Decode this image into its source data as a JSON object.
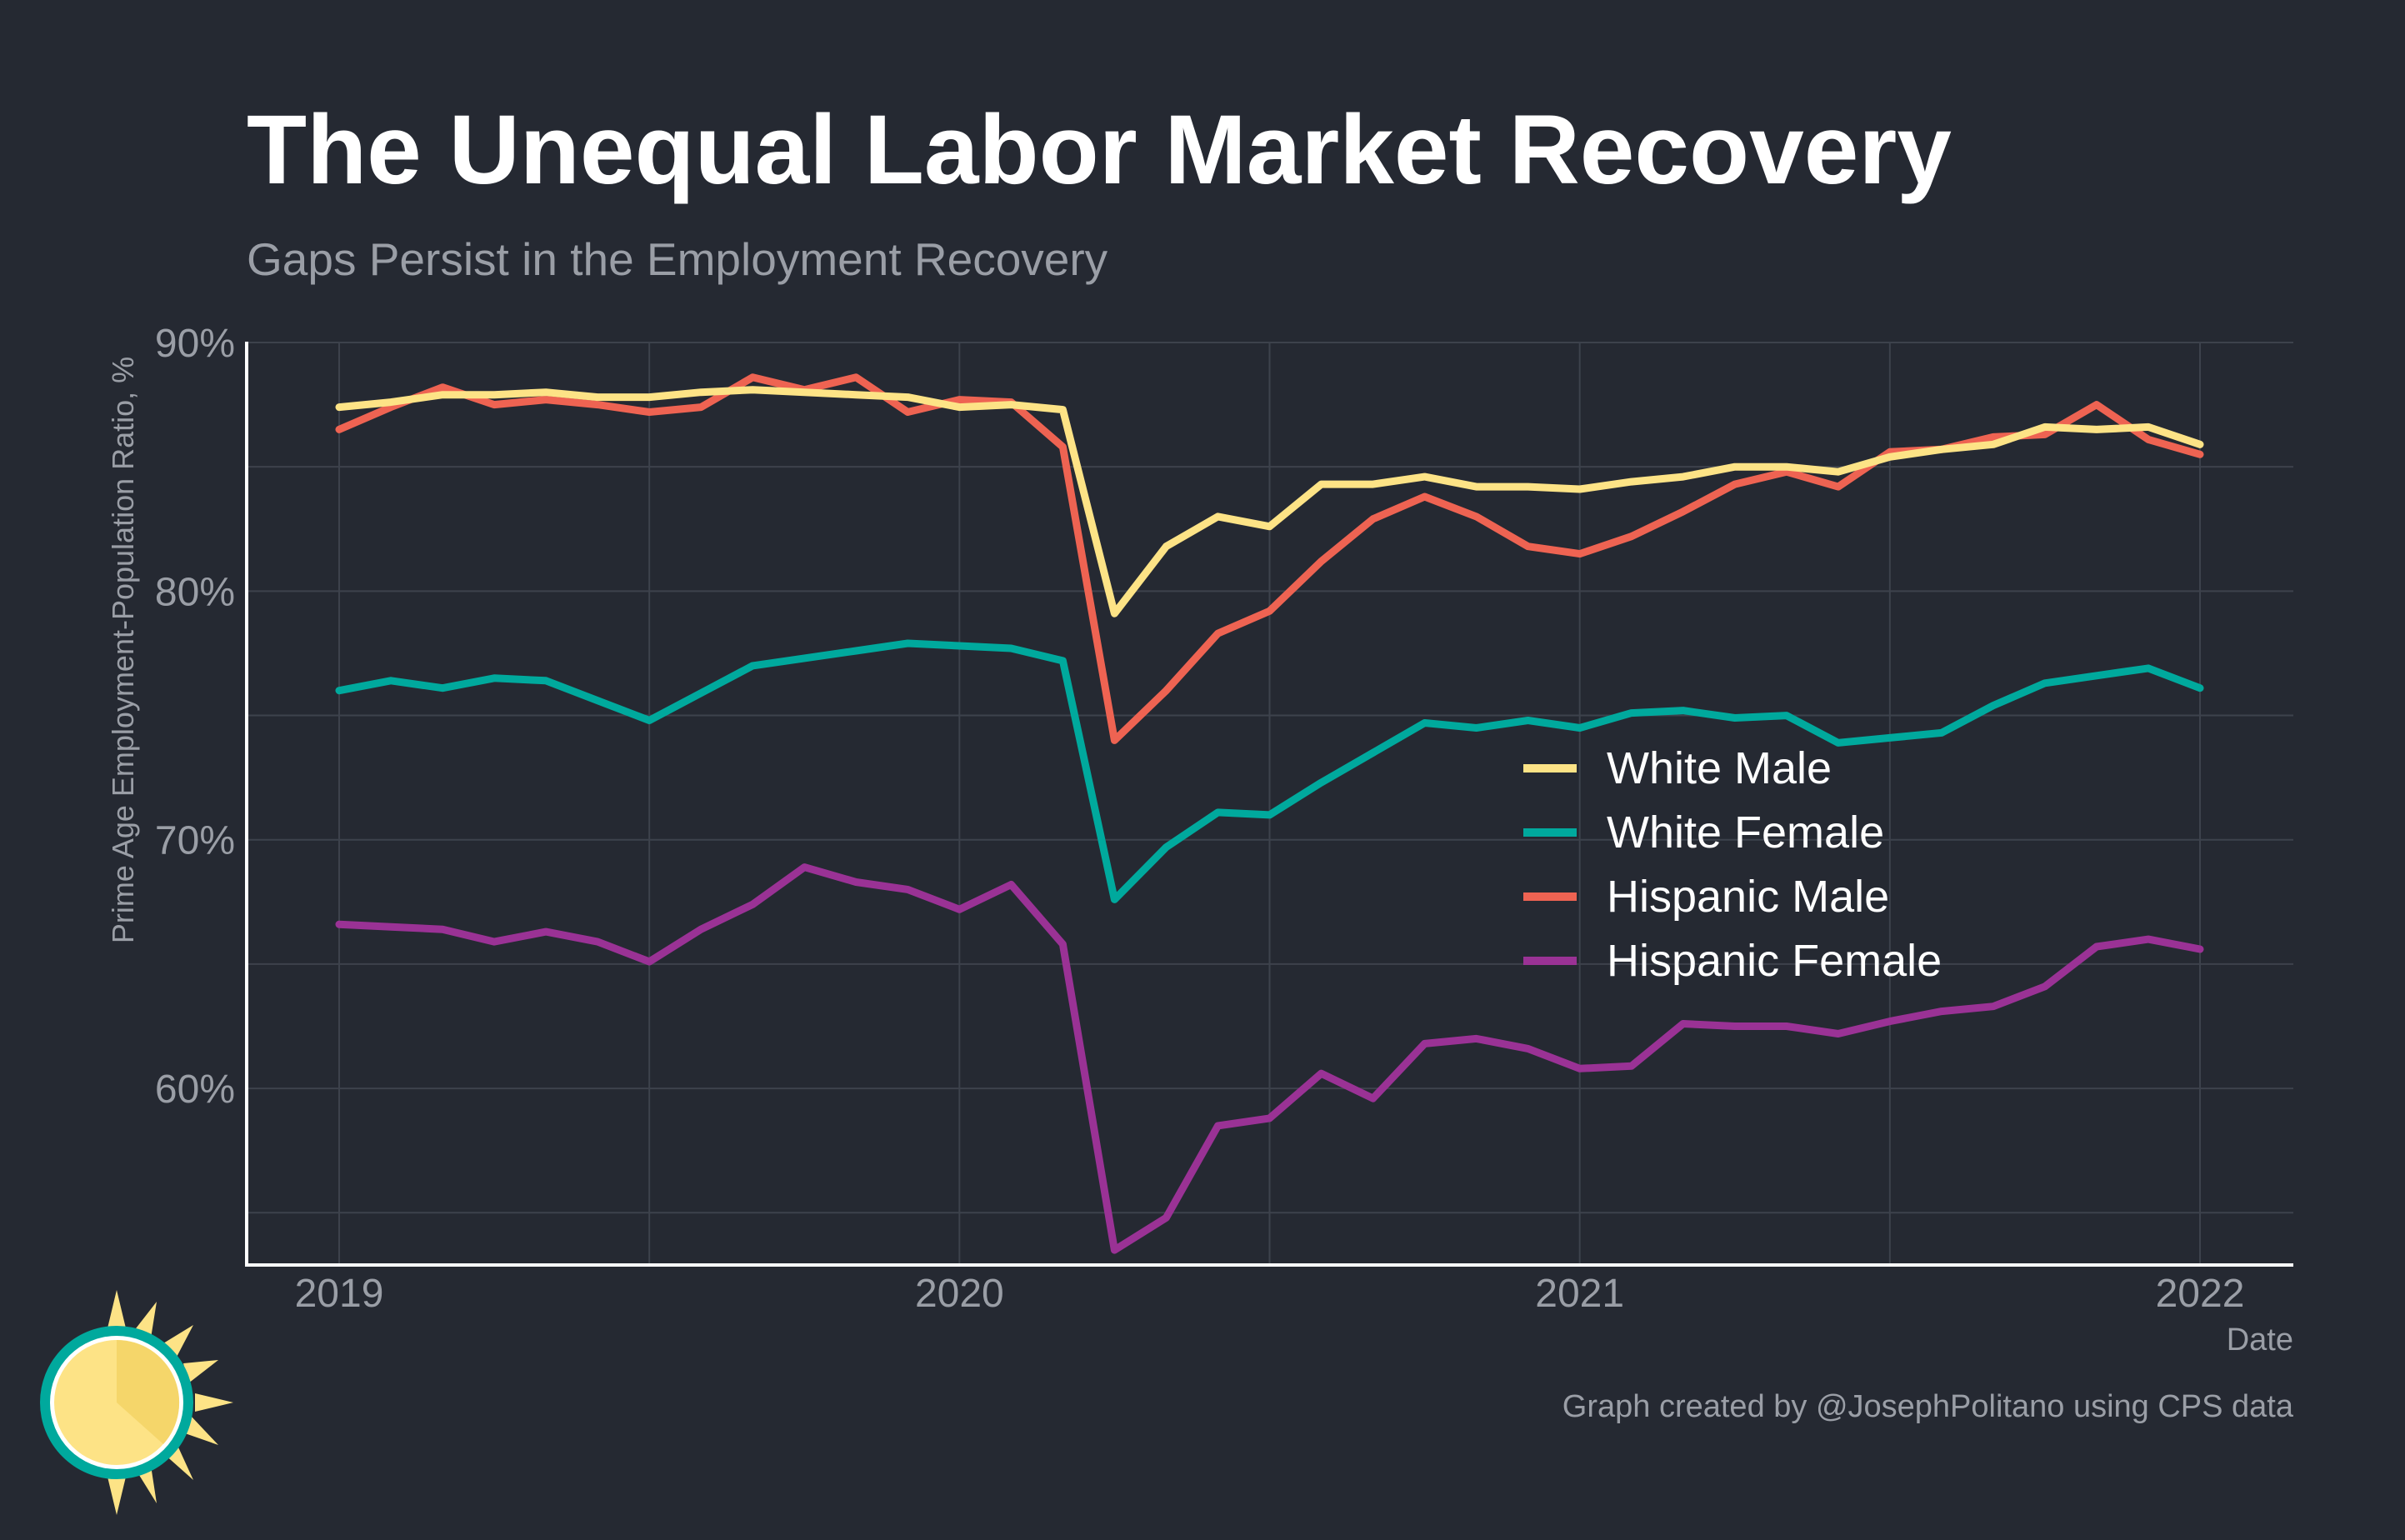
{
  "chart_data": {
    "type": "line",
    "title": "The Unequal Labor Market Recovery",
    "subtitle": "Gaps Persist in the Employment Recovery",
    "ylabel": "Prime Age Employment-Population Ratio, %",
    "xlabel": "Date",
    "caption": "Graph created by @JosephPolitano using CPS data",
    "x_ticks": [
      "2019",
      "2020",
      "2021",
      "2022"
    ],
    "y_ticks": [
      "60%",
      "70%",
      "80%",
      "90%"
    ],
    "y_tick_values": [
      60,
      70,
      80,
      90
    ],
    "ylim": [
      53.1,
      90
    ],
    "x_start": "2019-01",
    "x_end": "2022-01",
    "x": [
      "2019-01",
      "2019-02",
      "2019-03",
      "2019-04",
      "2019-05",
      "2019-06",
      "2019-07",
      "2019-08",
      "2019-09",
      "2019-10",
      "2019-11",
      "2019-12",
      "2020-01",
      "2020-02",
      "2020-03",
      "2020-04",
      "2020-05",
      "2020-06",
      "2020-07",
      "2020-08",
      "2020-09",
      "2020-10",
      "2020-11",
      "2020-12",
      "2021-01",
      "2021-02",
      "2021-03",
      "2021-04",
      "2021-05",
      "2021-06",
      "2021-07",
      "2021-08",
      "2021-09",
      "2021-10",
      "2021-11",
      "2021-12",
      "2022-01"
    ],
    "grid": true,
    "legend_position": "center-right",
    "colors": {
      "background": "#252932",
      "grid": "#3d424c",
      "axis": "#ffffff",
      "title": "#ffffff",
      "muted": "#9a9ea6"
    },
    "series": [
      {
        "name": "White Male",
        "color": "#fde386",
        "values": [
          87.4,
          87.6,
          87.9,
          87.9,
          88.0,
          87.8,
          87.8,
          88.0,
          88.1,
          88.0,
          87.9,
          87.8,
          87.4,
          87.5,
          87.3,
          79.1,
          81.8,
          83.0,
          82.6,
          84.3,
          84.3,
          84.6,
          84.2,
          84.2,
          84.1,
          84.4,
          84.6,
          85.0,
          85.0,
          84.8,
          85.4,
          85.7,
          85.9,
          86.6,
          86.5,
          86.6,
          85.9
        ]
      },
      {
        "name": "White Female",
        "color": "#00a99d",
        "values": [
          76.0,
          76.4,
          76.1,
          76.5,
          76.4,
          75.6,
          74.8,
          75.9,
          77.0,
          77.3,
          77.6,
          77.9,
          77.8,
          77.7,
          77.2,
          67.6,
          69.7,
          71.1,
          71.0,
          72.3,
          73.5,
          74.7,
          74.5,
          74.8,
          74.5,
          75.1,
          75.2,
          74.9,
          75.0,
          73.9,
          74.1,
          74.3,
          75.4,
          76.3,
          76.6,
          76.9,
          76.1
        ]
      },
      {
        "name": "Hispanic Male",
        "color": "#ee6352",
        "values": [
          86.5,
          87.4,
          88.2,
          87.5,
          87.7,
          87.5,
          87.2,
          87.4,
          88.6,
          88.1,
          88.6,
          87.2,
          87.7,
          87.6,
          85.8,
          74.0,
          76.0,
          78.3,
          79.2,
          81.2,
          82.9,
          83.8,
          83.0,
          81.8,
          81.5,
          82.2,
          83.2,
          84.3,
          84.8,
          84.2,
          85.6,
          85.7,
          86.2,
          86.3,
          87.5,
          86.1,
          85.5
        ]
      },
      {
        "name": "Hispanic Female",
        "color": "#9a3295",
        "values": [
          66.6,
          66.5,
          66.4,
          65.9,
          66.3,
          65.9,
          65.1,
          66.4,
          67.4,
          68.9,
          68.3,
          68.0,
          67.2,
          68.2,
          65.8,
          53.5,
          54.8,
          58.5,
          58.8,
          60.6,
          59.6,
          61.8,
          62.0,
          61.6,
          60.8,
          60.9,
          62.6,
          62.5,
          62.5,
          62.2,
          62.7,
          63.1,
          63.3,
          64.1,
          65.7,
          66.0,
          65.6
        ]
      }
    ]
  }
}
